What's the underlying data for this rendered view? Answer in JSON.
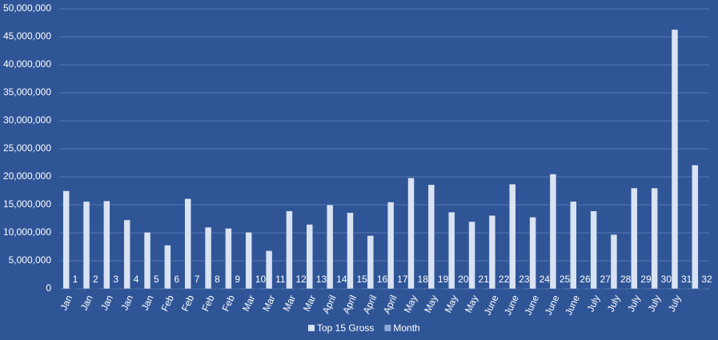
{
  "chart_data": {
    "type": "bar",
    "categories": [
      "Jan",
      "Jan",
      "Jan",
      "Jan",
      "Jan",
      "Feb",
      "Feb",
      "Feb",
      "Feb",
      "Mar",
      "Mar",
      "Mar",
      "Mar",
      "April",
      "April",
      "April",
      "April",
      "May",
      "May",
      "May",
      "May",
      "June",
      "June",
      "June",
      "June",
      "June",
      "July",
      "July",
      "July",
      "July",
      "July",
      null
    ],
    "series": [
      {
        "name": "Top 15 Gross",
        "color": "#dae3f3",
        "values": [
          17500000,
          15600000,
          15700000,
          12300000,
          10100000,
          7800000,
          16100000,
          11000000,
          10800000,
          10100000,
          6800000,
          13900000,
          11500000,
          15000000,
          13600000,
          9500000,
          15500000,
          19800000,
          18600000,
          13700000,
          12000000,
          13100000,
          18700000,
          12800000,
          20500000,
          15600000,
          13900000,
          9700000,
          18000000,
          18000000,
          46300000,
          22100000
        ]
      },
      {
        "name": "Month",
        "color": "#8faadc",
        "values": [
          1,
          2,
          3,
          4,
          5,
          6,
          7,
          8,
          9,
          10,
          11,
          12,
          13,
          14,
          15,
          16,
          17,
          18,
          19,
          20,
          21,
          22,
          23,
          24,
          25,
          26,
          27,
          28,
          29,
          30,
          31,
          32
        ]
      }
    ],
    "ylim": [
      0,
      50000000
    ],
    "yticks": [
      {
        "value": 0,
        "label": "0"
      },
      {
        "value": 5000000,
        "label": "5,000,000"
      },
      {
        "value": 10000000,
        "label": "10,000,000"
      },
      {
        "value": 15000000,
        "label": "15,000,000"
      },
      {
        "value": 20000000,
        "label": "20,000,000"
      },
      {
        "value": 25000000,
        "label": "25,000,000"
      },
      {
        "value": 30000000,
        "label": "30,000,000"
      },
      {
        "value": 35000000,
        "label": "35,000,000"
      },
      {
        "value": 40000000,
        "label": "40,000,000"
      },
      {
        "value": 45000000,
        "label": "45,000,000"
      },
      {
        "value": 50000000,
        "label": "50,000,000"
      }
    ],
    "grid": true,
    "legend": "bottom"
  }
}
